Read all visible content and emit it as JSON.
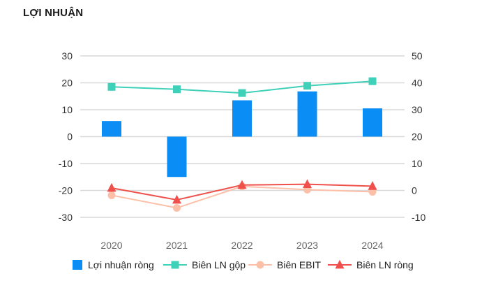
{
  "page": {
    "title": "LỢI NHUẬN"
  },
  "chart_data": {
    "type": "bar",
    "title": "LỢI NHUẬN",
    "categories": [
      "2020",
      "2021",
      "2022",
      "2023",
      "2024"
    ],
    "left_axis": {
      "ylim": [
        -30,
        30
      ],
      "ticks": [
        "30",
        "20",
        "10",
        "0",
        "-10",
        "-20",
        "-30"
      ]
    },
    "right_axis": {
      "ylim": [
        -10,
        50
      ],
      "ticks": [
        "50",
        "40",
        "30",
        "20",
        "10",
        "0",
        "-10"
      ]
    },
    "grid": true,
    "legend_position": "bottom",
    "series": [
      {
        "name": "Lợi nhuận ròng",
        "type": "bar",
        "axis": "left",
        "color": "#0a8df4",
        "values": [
          5.8,
          -15.0,
          13.5,
          16.8,
          10.5
        ]
      },
      {
        "name": "Biên LN gộp",
        "type": "line",
        "axis": "right",
        "marker": "square",
        "color": "#3fd0b9",
        "values": [
          38.5,
          37.6,
          36.2,
          38.9,
          40.6
        ]
      },
      {
        "name": "Biên EBIT",
        "type": "line",
        "axis": "right",
        "marker": "circle",
        "color": "#fcbfa8",
        "values": [
          -1.8,
          -6.5,
          1.5,
          0.3,
          -0.5
        ]
      },
      {
        "name": "Biên LN ròng",
        "type": "line",
        "axis": "right",
        "marker": "triangle",
        "color": "#f0504c",
        "values": [
          0.9,
          -3.5,
          2.0,
          2.3,
          1.6
        ]
      }
    ]
  }
}
